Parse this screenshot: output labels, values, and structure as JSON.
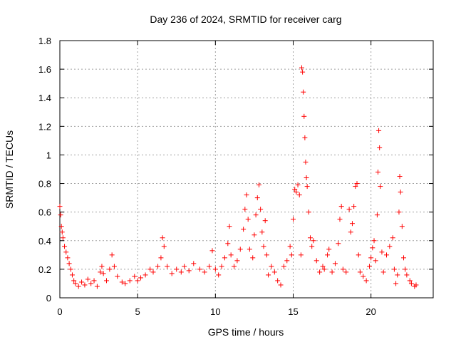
{
  "chart_data": {
    "type": "scatter",
    "title": "Day 236 of 2024, SRMTID for receiver carg",
    "xlabel": "GPS time / hours",
    "ylabel": "SRMTID / TECUs",
    "xlim": [
      0,
      24
    ],
    "ylim": [
      0,
      1.8
    ],
    "xticks": [
      0,
      5,
      10,
      15,
      20
    ],
    "xtick_labels": [
      "0",
      "5",
      "10",
      "15",
      "20"
    ],
    "yticks": [
      0,
      0.2,
      0.4,
      0.6,
      0.8,
      1.0,
      1.2,
      1.4,
      1.6,
      1.8
    ],
    "ytick_labels": [
      "0",
      "0.2",
      "0.4",
      "0.6",
      "0.8",
      "1",
      "1.2",
      "1.4",
      "1.6",
      "1.8"
    ],
    "grid": true,
    "marker": "+",
    "color": "#ff0000",
    "series": [
      {
        "name": "SRMTID",
        "points": [
          [
            0.0,
            0.64
          ],
          [
            0.05,
            0.58
          ],
          [
            0.1,
            0.5
          ],
          [
            0.15,
            0.46
          ],
          [
            0.2,
            0.42
          ],
          [
            0.3,
            0.36
          ],
          [
            0.4,
            0.32
          ],
          [
            0.5,
            0.28
          ],
          [
            0.6,
            0.24
          ],
          [
            0.7,
            0.2
          ],
          [
            0.8,
            0.16
          ],
          [
            0.9,
            0.12
          ],
          [
            1.0,
            0.1
          ],
          [
            1.2,
            0.08
          ],
          [
            1.4,
            0.11
          ],
          [
            1.6,
            0.09
          ],
          [
            1.8,
            0.13
          ],
          [
            2.0,
            0.1
          ],
          [
            2.2,
            0.12
          ],
          [
            2.4,
            0.08
          ],
          [
            2.6,
            0.18
          ],
          [
            2.7,
            0.22
          ],
          [
            2.8,
            0.17
          ],
          [
            3.0,
            0.12
          ],
          [
            3.2,
            0.2
          ],
          [
            3.35,
            0.3
          ],
          [
            3.5,
            0.22
          ],
          [
            3.7,
            0.15
          ],
          [
            4.0,
            0.11
          ],
          [
            4.2,
            0.1
          ],
          [
            4.5,
            0.12
          ],
          [
            4.8,
            0.15
          ],
          [
            5.0,
            0.12
          ],
          [
            5.2,
            0.14
          ],
          [
            5.5,
            0.16
          ],
          [
            5.8,
            0.2
          ],
          [
            6.0,
            0.18
          ],
          [
            6.3,
            0.22
          ],
          [
            6.5,
            0.28
          ],
          [
            6.6,
            0.42
          ],
          [
            6.7,
            0.36
          ],
          [
            6.9,
            0.22
          ],
          [
            7.2,
            0.17
          ],
          [
            7.5,
            0.2
          ],
          [
            7.8,
            0.18
          ],
          [
            8.0,
            0.22
          ],
          [
            8.3,
            0.19
          ],
          [
            8.6,
            0.24
          ],
          [
            9.0,
            0.2
          ],
          [
            9.3,
            0.18
          ],
          [
            9.6,
            0.22
          ],
          [
            9.8,
            0.33
          ],
          [
            10.0,
            0.2
          ],
          [
            10.2,
            0.16
          ],
          [
            10.4,
            0.22
          ],
          [
            10.6,
            0.28
          ],
          [
            10.8,
            0.38
          ],
          [
            10.9,
            0.5
          ],
          [
            11.0,
            0.3
          ],
          [
            11.2,
            0.22
          ],
          [
            11.4,
            0.26
          ],
          [
            11.6,
            0.34
          ],
          [
            11.8,
            0.48
          ],
          [
            11.9,
            0.62
          ],
          [
            12.0,
            0.72
          ],
          [
            12.1,
            0.55
          ],
          [
            12.2,
            0.34
          ],
          [
            12.4,
            0.28
          ],
          [
            12.5,
            0.44
          ],
          [
            12.6,
            0.58
          ],
          [
            12.7,
            0.7
          ],
          [
            12.8,
            0.79
          ],
          [
            12.9,
            0.62
          ],
          [
            13.0,
            0.46
          ],
          [
            13.1,
            0.36
          ],
          [
            13.2,
            0.54
          ],
          [
            13.3,
            0.3
          ],
          [
            13.4,
            0.16
          ],
          [
            13.6,
            0.22
          ],
          [
            13.8,
            0.18
          ],
          [
            14.0,
            0.12
          ],
          [
            14.2,
            0.09
          ],
          [
            14.4,
            0.22
          ],
          [
            14.6,
            0.26
          ],
          [
            14.8,
            0.36
          ],
          [
            14.9,
            0.3
          ],
          [
            15.0,
            0.55
          ],
          [
            15.1,
            0.76
          ],
          [
            15.2,
            0.74
          ],
          [
            15.3,
            0.79
          ],
          [
            15.4,
            0.72
          ],
          [
            15.5,
            0.3
          ],
          [
            15.55,
            1.61
          ],
          [
            15.6,
            1.58
          ],
          [
            15.65,
            1.44
          ],
          [
            15.7,
            1.27
          ],
          [
            15.75,
            1.12
          ],
          [
            15.8,
            0.95
          ],
          [
            15.85,
            0.84
          ],
          [
            15.9,
            0.78
          ],
          [
            16.0,
            0.6
          ],
          [
            16.1,
            0.42
          ],
          [
            16.2,
            0.36
          ],
          [
            16.3,
            0.4
          ],
          [
            16.5,
            0.26
          ],
          [
            16.7,
            0.18
          ],
          [
            16.9,
            0.22
          ],
          [
            17.0,
            0.2
          ],
          [
            17.2,
            0.3
          ],
          [
            17.3,
            0.34
          ],
          [
            17.5,
            0.18
          ],
          [
            17.7,
            0.24
          ],
          [
            17.9,
            0.38
          ],
          [
            18.0,
            0.55
          ],
          [
            18.1,
            0.64
          ],
          [
            18.2,
            0.2
          ],
          [
            18.4,
            0.18
          ],
          [
            18.6,
            0.62
          ],
          [
            18.7,
            0.46
          ],
          [
            18.8,
            0.52
          ],
          [
            18.9,
            0.64
          ],
          [
            19.0,
            0.78
          ],
          [
            19.1,
            0.8
          ],
          [
            19.2,
            0.3
          ],
          [
            19.3,
            0.18
          ],
          [
            19.5,
            0.15
          ],
          [
            19.7,
            0.12
          ],
          [
            19.9,
            0.22
          ],
          [
            20.0,
            0.28
          ],
          [
            20.1,
            0.35
          ],
          [
            20.2,
            0.4
          ],
          [
            20.3,
            0.26
          ],
          [
            20.4,
            0.58
          ],
          [
            20.45,
            0.88
          ],
          [
            20.5,
            1.17
          ],
          [
            20.55,
            1.05
          ],
          [
            20.6,
            0.78
          ],
          [
            20.7,
            0.32
          ],
          [
            20.8,
            0.18
          ],
          [
            21.0,
            0.3
          ],
          [
            21.2,
            0.36
          ],
          [
            21.4,
            0.42
          ],
          [
            21.5,
            0.2
          ],
          [
            21.6,
            0.1
          ],
          [
            21.7,
            0.16
          ],
          [
            21.8,
            0.6
          ],
          [
            21.85,
            0.85
          ],
          [
            21.9,
            0.74
          ],
          [
            22.0,
            0.5
          ],
          [
            22.1,
            0.28
          ],
          [
            22.2,
            0.2
          ],
          [
            22.3,
            0.16
          ],
          [
            22.5,
            0.12
          ],
          [
            22.6,
            0.1
          ],
          [
            22.8,
            0.08
          ],
          [
            22.9,
            0.09
          ]
        ]
      }
    ]
  }
}
